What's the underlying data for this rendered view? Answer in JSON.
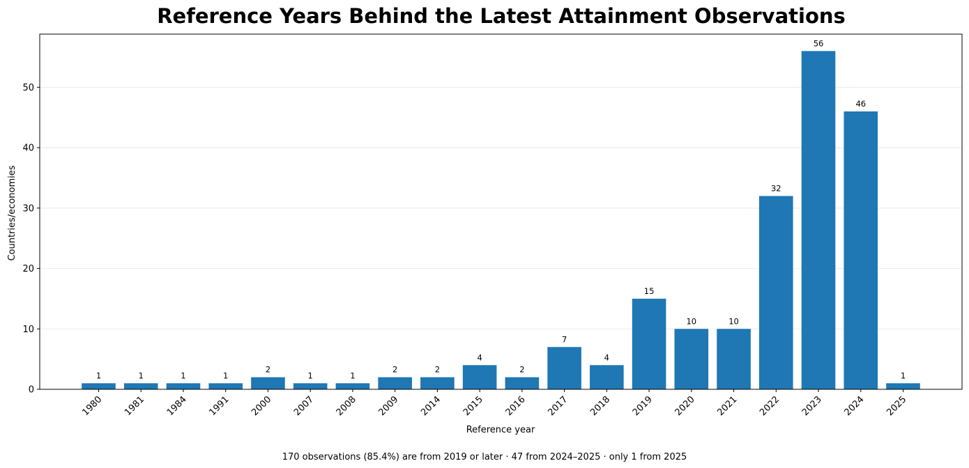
{
  "chart_data": {
    "type": "bar",
    "title": "Reference Years Behind the Latest Attainment Observations",
    "xlabel": "Reference year",
    "ylabel": "Countries/economies",
    "categories": [
      "1980",
      "1981",
      "1984",
      "1991",
      "2000",
      "2007",
      "2008",
      "2009",
      "2014",
      "2015",
      "2016",
      "2017",
      "2018",
      "2019",
      "2020",
      "2021",
      "2022",
      "2023",
      "2024",
      "2025"
    ],
    "values": [
      1,
      1,
      1,
      1,
      2,
      1,
      1,
      2,
      2,
      4,
      2,
      7,
      4,
      15,
      10,
      10,
      32,
      56,
      46,
      1
    ],
    "ylim": [
      0,
      58.8
    ],
    "yticks": [
      0,
      10,
      20,
      30,
      40,
      50
    ],
    "grid": true,
    "bar_color": "#1f77b4",
    "footnote": "170 observations (85.4%) are from 2019 or later · 47 from 2024–2025 · only 1 from 2025"
  }
}
